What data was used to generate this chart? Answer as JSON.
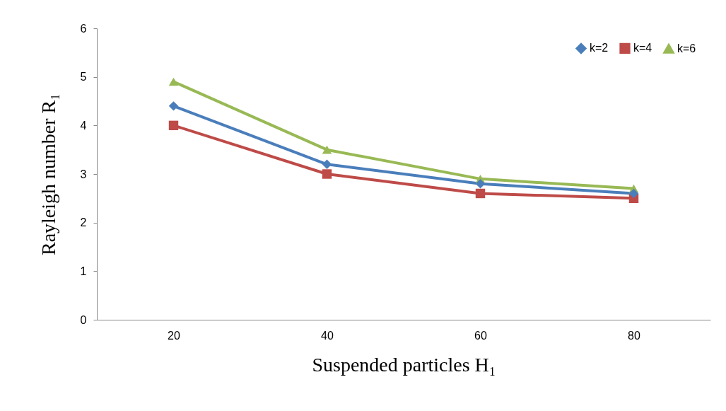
{
  "chart_data": {
    "type": "line",
    "xlabel": "Suspended particles H₁",
    "ylabel": "Rayleigh number R₁",
    "categories": [
      "20",
      "40",
      "60",
      "80"
    ],
    "series": [
      {
        "name": "k=2",
        "color": "#4a7ebb",
        "marker": "diamond",
        "values": [
          4.4,
          3.2,
          2.8,
          2.6
        ]
      },
      {
        "name": "k=4",
        "color": "#be4b48",
        "marker": "square",
        "values": [
          4.0,
          3.0,
          2.6,
          2.5
        ]
      },
      {
        "name": "k=6",
        "color": "#98b954",
        "marker": "triangle",
        "values": [
          4.9,
          3.5,
          2.9,
          2.7
        ]
      }
    ],
    "ylim": [
      0,
      6
    ],
    "yticks": [
      0,
      1,
      2,
      3,
      4,
      5,
      6
    ],
    "grid": false,
    "legend": "top right",
    "line_style": "solid"
  }
}
